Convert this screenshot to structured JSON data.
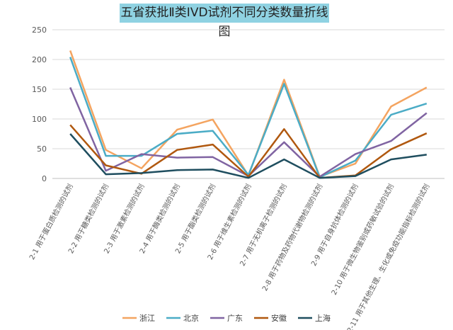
{
  "chart_data": {
    "type": "line",
    "title": "五省获批Ⅱ类IVD试剂不同分类数量折线图",
    "ylim": [
      0,
      250
    ],
    "yticks": [
      0,
      50,
      100,
      150,
      200,
      250
    ],
    "grid": true,
    "legend_position": "bottom",
    "categories": [
      "2-1 用于蛋白质检测的试剂",
      "2-2 用于糖类检测的试剂",
      "2-3 用于激素检测的试剂",
      "2-4 用于酶类检测的试剂",
      "2-5 用于酯类检测的试剂",
      "2-6 用于维生素检测的试剂",
      "2-7 用于无机离子检测的试剂",
      "2-8 用于药物及药物代谢物检测的试剂",
      "2-9 用于自身抗体检测的试剂",
      "2-10 用于微生物鉴别或药敏试验的试剂",
      "2-11 用于其他生理、生化或免疫功能指标检测的试剂"
    ],
    "series": [
      {
        "name": "浙江",
        "color": "#f4a460",
        "values": [
          215,
          48,
          17,
          82,
          99,
          5,
          166,
          3,
          25,
          121,
          153
        ]
      },
      {
        "name": "北京",
        "color": "#4bacc6",
        "values": [
          204,
          38,
          38,
          75,
          80,
          6,
          159,
          2,
          30,
          107,
          126
        ]
      },
      {
        "name": "广东",
        "color": "#8064a2",
        "values": [
          153,
          13,
          41,
          35,
          36,
          4,
          61,
          3,
          41,
          63,
          110
        ]
      },
      {
        "name": "安徽",
        "color": "#b0580f",
        "values": [
          90,
          22,
          8,
          48,
          57,
          3,
          83,
          1,
          5,
          49,
          76
        ]
      },
      {
        "name": "上海",
        "color": "#1f4e5f",
        "values": [
          75,
          7,
          9,
          14,
          15,
          1,
          32,
          1,
          4,
          32,
          40
        ]
      }
    ]
  }
}
